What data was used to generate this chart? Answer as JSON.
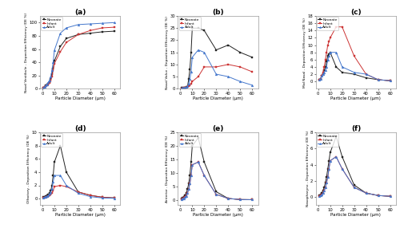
{
  "x": [
    1,
    2,
    3,
    4,
    5,
    6,
    7,
    8,
    9,
    10,
    15,
    20,
    30,
    40,
    50,
    60
  ],
  "panel_titles": [
    "(a)",
    "(b)",
    "(c)",
    "(d)",
    "(e)",
    "(f)"
  ],
  "ylabels": [
    "Nasal Vestibule - Deposition Efficiency (DE %)",
    "Nasal Valve - Deposition Efficiency (DE %)",
    "Mid Nasal - Deposition Efficiency (DE %)",
    "Olfactory - Deposition Efficiency (DE %)",
    "Anterior - Deposition Efficiency (DE %)",
    "Nasopharynx - Deposition Efficiency (DE %)"
  ],
  "xlabel": "Particle Diameter (μm)",
  "legend_labels": [
    "Neonate",
    "Infant",
    "Adult"
  ],
  "colors": [
    "#222222",
    "#cc3333",
    "#4477cc"
  ],
  "markers": [
    "s",
    "s",
    "^"
  ],
  "a": {
    "neonate": [
      2,
      3,
      5,
      7,
      8,
      10,
      15,
      22,
      30,
      42,
      64,
      76,
      82,
      84,
      86,
      87
    ],
    "infant": [
      2,
      3,
      4,
      5,
      7,
      9,
      13,
      18,
      28,
      38,
      56,
      70,
      82,
      88,
      92,
      93
    ],
    "adult": [
      2,
      3,
      5,
      7,
      10,
      13,
      18,
      28,
      40,
      58,
      84,
      92,
      97,
      98,
      99,
      100
    ],
    "ylim": [
      0,
      110
    ],
    "yticks": [
      0,
      20,
      40,
      60,
      80,
      100
    ]
  },
  "b": {
    "neonate": [
      0.3,
      0.3,
      0.4,
      0.5,
      0.6,
      0.8,
      4,
      8,
      15,
      25,
      25,
      24,
      16,
      18,
      15,
      13
    ],
    "infant": [
      0.2,
      0.2,
      0.3,
      0.4,
      0.5,
      0.7,
      1,
      1.5,
      2,
      3,
      5,
      9,
      9,
      10,
      9,
      7
    ],
    "adult": [
      0.2,
      0.3,
      0.4,
      0.5,
      0.6,
      1,
      2,
      4,
      7,
      13,
      16,
      15,
      6,
      5,
      3,
      1.5
    ],
    "ylim": [
      0,
      30
    ],
    "yticks": [
      0,
      5,
      10,
      15,
      20,
      25,
      30
    ]
  },
  "c": {
    "neonate": [
      0.5,
      0.8,
      1.5,
      2,
      3,
      4,
      5.5,
      7,
      7.5,
      8,
      4,
      2.5,
      2,
      1,
      0.5,
      0.2
    ],
    "infant": [
      0.5,
      0.8,
      1.5,
      2.5,
      4,
      6,
      8,
      10,
      11,
      12,
      15,
      15,
      7,
      2,
      0.5,
      0.2
    ],
    "adult": [
      0.5,
      0.8,
      1.5,
      2,
      2.5,
      3,
      4,
      6,
      7,
      8,
      8,
      4,
      2.5,
      2,
      0.5,
      0.2
    ],
    "ylim": [
      -2,
      18
    ],
    "yticks": [
      0,
      2,
      4,
      6,
      8,
      10,
      12,
      14,
      16,
      18
    ]
  },
  "d": {
    "neonate": [
      0.2,
      0.3,
      0.4,
      0.5,
      0.6,
      0.8,
      1.2,
      2,
      3.5,
      5.5,
      8,
      4,
      1,
      0.5,
      0.2,
      0.1
    ],
    "infant": [
      0.1,
      0.1,
      0.2,
      0.3,
      0.4,
      0.5,
      0.6,
      0.8,
      1.2,
      1.8,
      2,
      1.8,
      1,
      0.5,
      0.2,
      0.1
    ],
    "adult": [
      0.1,
      0.2,
      0.3,
      0.4,
      0.5,
      0.7,
      1,
      1.5,
      2.5,
      3.5,
      3.5,
      2,
      0.8,
      0.3,
      0.1,
      0.05
    ],
    "ylim": [
      -1,
      10
    ],
    "yticks": [
      0,
      2,
      4,
      6,
      8,
      10
    ]
  },
  "e": {
    "neonate": [
      0.5,
      0.8,
      1.2,
      1.8,
      2.5,
      4,
      6,
      9,
      14,
      20,
      23,
      14,
      3,
      0.5,
      0.1,
      0.05
    ],
    "infant": [
      0.3,
      0.5,
      0.8,
      1.2,
      1.8,
      2.5,
      4,
      6,
      9,
      13,
      14,
      9,
      2,
      0.5,
      0.1,
      0.05
    ],
    "adult": [
      0.2,
      0.4,
      0.6,
      1,
      1.5,
      2.5,
      4,
      6,
      9,
      13,
      14,
      9,
      2,
      0.5,
      0.1,
      0.05
    ],
    "ylim": [
      -2,
      25
    ],
    "yticks": [
      0,
      5,
      10,
      15,
      20,
      25
    ]
  },
  "f": {
    "neonate": [
      0.2,
      0.3,
      0.5,
      0.8,
      1.2,
      1.8,
      2.5,
      3.5,
      4.5,
      5.5,
      7.5,
      5,
      1.5,
      0.5,
      0.2,
      0.1
    ],
    "infant": [
      0.1,
      0.2,
      0.3,
      0.5,
      0.8,
      1.2,
      1.8,
      2.5,
      3.5,
      4.5,
      5,
      3.5,
      1.2,
      0.5,
      0.2,
      0.1
    ],
    "adult": [
      0.1,
      0.2,
      0.3,
      0.5,
      0.8,
      1.2,
      1.8,
      2.5,
      3.5,
      4.5,
      5,
      3.5,
      1.2,
      0.5,
      0.2,
      0.1
    ],
    "ylim": [
      -1,
      8
    ],
    "yticks": [
      0,
      2,
      4,
      6,
      8
    ]
  }
}
